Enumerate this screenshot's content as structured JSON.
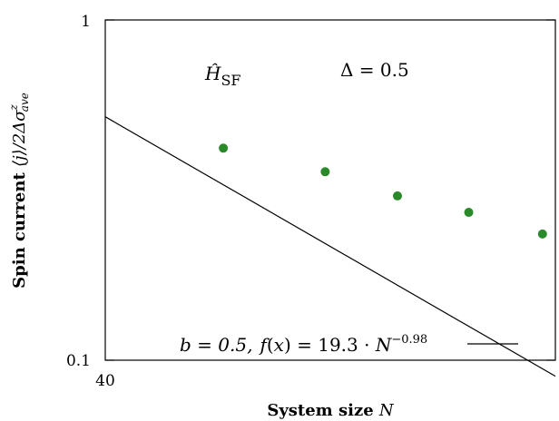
{
  "chart_data": {
    "type": "scatter",
    "xscale": "log",
    "yscale": "log",
    "xlim": [
      40,
      240
    ],
    "ylim": [
      0.1,
      1
    ],
    "xticks": [
      "40"
    ],
    "yticks": [
      "1",
      "0.1"
    ],
    "xlabel": {
      "text": "System size ",
      "var": "N"
    },
    "ylabel": {
      "text": "Spin current ",
      "math": "⟨j⟩/2Δσ",
      "sup": "z",
      "sub": "ave"
    },
    "points": [
      {
        "x": 64,
        "y": 0.42
      },
      {
        "x": 96,
        "y": 0.358
      },
      {
        "x": 128,
        "y": 0.304
      },
      {
        "x": 170,
        "y": 0.272
      },
      {
        "x": 228,
        "y": 0.235
      }
    ],
    "fit": {
      "a": 19.3,
      "exponent": -0.98
    },
    "point_color": "#2a8a2a",
    "annotations": {
      "hamiltonian": {
        "symbol": "Ĥ",
        "sub": "SF"
      },
      "delta": "Δ = 0.5"
    },
    "legend": {
      "placement": "bottom-right",
      "b": "b = 0.5,",
      "f_var": "f",
      "f_arg": "(",
      "f_x": "x",
      "f_rest": ") = 19.3 · ",
      "f_N": "N",
      "f_exp": "−0.98"
    }
  }
}
